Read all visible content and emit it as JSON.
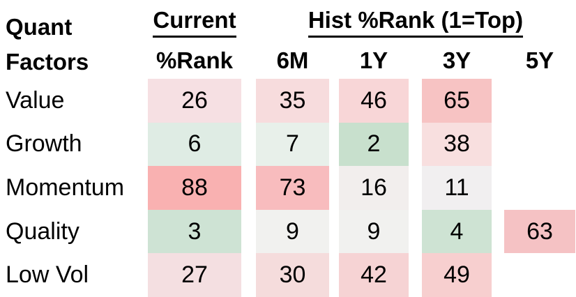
{
  "title": {
    "line1": "Quant",
    "line2": "Factors"
  },
  "header": {
    "current_group": "Current",
    "current_sub": "%Rank",
    "hist_group": "Hist %Rank (1=Top)",
    "periods": [
      "6M",
      "1Y",
      "3Y",
      "5Y"
    ]
  },
  "rows": [
    {
      "label": "Value",
      "cells": [
        {
          "v": "26",
          "bg": "#f6e0e3"
        },
        {
          "v": "35",
          "bg": "#f7dcdd"
        },
        {
          "v": "46",
          "bg": "#f8d6d7"
        },
        {
          "v": "65",
          "bg": "#f7c3c3"
        },
        null
      ]
    },
    {
      "label": "Growth",
      "cells": [
        {
          "v": "6",
          "bg": "#dfece4"
        },
        {
          "v": "7",
          "bg": "#e8f0ea"
        },
        {
          "v": "2",
          "bg": "#c8e0cd"
        },
        {
          "v": "38",
          "bg": "#f8dfdf"
        },
        null
      ]
    },
    {
      "label": "Momentum",
      "cells": [
        {
          "v": "88",
          "bg": "#f9b1b1"
        },
        {
          "v": "73",
          "bg": "#f8bcbe"
        },
        {
          "v": "16",
          "bg": "#f2eeed"
        },
        {
          "v": "11",
          "bg": "#f1eff0"
        },
        null
      ]
    },
    {
      "label": "Quality",
      "cells": [
        {
          "v": "3",
          "bg": "#cee3d4"
        },
        {
          "v": "9",
          "bg": "#f1f1ef"
        },
        {
          "v": "9",
          "bg": "#f1f1ef"
        },
        {
          "v": "4",
          "bg": "#cee3d3"
        },
        {
          "v": "63",
          "bg": "#f5c2c4"
        }
      ]
    },
    {
      "label": "Low Vol",
      "cells": [
        {
          "v": "27",
          "bg": "#f4dfe1"
        },
        {
          "v": "30",
          "bg": "#f5dcdc"
        },
        {
          "v": "42",
          "bg": "#f6d3d4"
        },
        {
          "v": "49",
          "bg": "#f7cfcf"
        },
        null
      ]
    }
  ],
  "colors": {
    "text": "#000000",
    "background": "#ffffff",
    "heat_low_green": "#c8e0cd",
    "heat_neutral": "#f1f1ef",
    "heat_high_red": "#f9b1b1"
  },
  "chart_data": {
    "type": "heatmap",
    "title": "Quant Factors — Current and Historical Percentile Ranks (1=Top)",
    "row_labels": [
      "Value",
      "Growth",
      "Momentum",
      "Quality",
      "Low Vol"
    ],
    "col_labels": [
      "Current %Rank",
      "6M",
      "1Y",
      "3Y",
      "5Y"
    ],
    "values": [
      [
        26,
        35,
        46,
        65,
        null
      ],
      [
        6,
        7,
        2,
        38,
        null
      ],
      [
        88,
        73,
        16,
        11,
        null
      ],
      [
        3,
        9,
        9,
        4,
        63
      ],
      [
        27,
        30,
        42,
        49,
        null
      ]
    ],
    "scale": "percentile rank, 1 = top (green = low/good rank, red = high/poor rank)",
    "value_range": [
      1,
      100
    ],
    "legend_position": "none",
    "grid": false
  }
}
